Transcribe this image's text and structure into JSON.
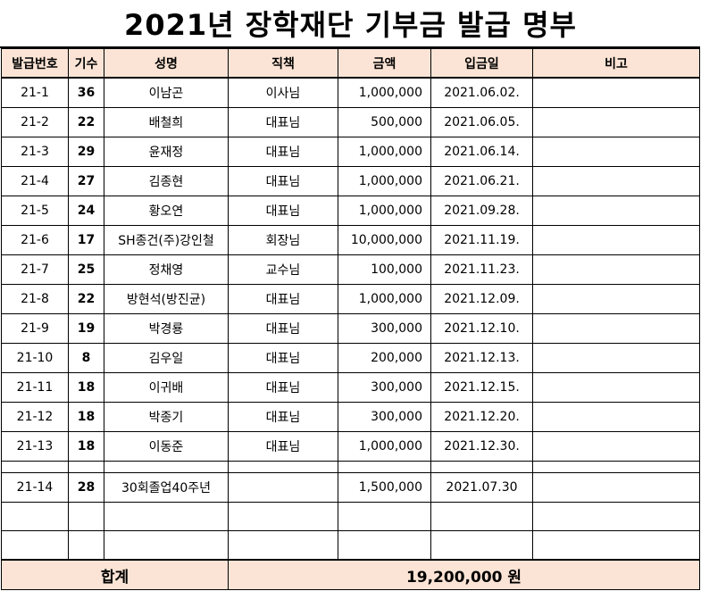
{
  "title": "2021년 장학재단 기부금 발급 명부",
  "headers": [
    "발급번호",
    "기수",
    "성명",
    "직책",
    "금액",
    "입금일",
    "비고"
  ],
  "rows": [
    {
      "no": "21-1",
      "gen": "36",
      "name": "이남곤",
      "role": "이사님",
      "amount": "1,000,000",
      "date": "2021.06.02.",
      "note": ""
    },
    {
      "no": "21-2",
      "gen": "22",
      "name": "배철희",
      "role": "대표님",
      "amount": "500,000",
      "date": "2021.06.05.",
      "note": ""
    },
    {
      "no": "21-3",
      "gen": "29",
      "name": "윤재정",
      "role": "대표님",
      "amount": "1,000,000",
      "date": "2021.06.14.",
      "note": ""
    },
    {
      "no": "21-4",
      "gen": "27",
      "name": "김종현",
      "role": "대표님",
      "amount": "1,000,000",
      "date": "2021.06.21.",
      "note": ""
    },
    {
      "no": "21-5",
      "gen": "24",
      "name": "황오연",
      "role": "대표님",
      "amount": "1,000,000",
      "date": "2021.09.28.",
      "note": ""
    },
    {
      "no": "21-6",
      "gen": "17",
      "name": "SH종건(주)강인철",
      "role": "회장님",
      "amount": "10,000,000",
      "date": "2021.11.19.",
      "note": ""
    },
    {
      "no": "21-7",
      "gen": "25",
      "name": "정채영",
      "role": "교수님",
      "amount": "100,000",
      "date": "2021.11.23.",
      "note": ""
    },
    {
      "no": "21-8",
      "gen": "22",
      "name": "방현석(방진균)",
      "role": "대표님",
      "amount": "1,000,000",
      "date": "2021.12.09.",
      "note": ""
    },
    {
      "no": "21-9",
      "gen": "19",
      "name": "박경룡",
      "role": "대표님",
      "amount": "300,000",
      "date": "2021.12.10.",
      "note": ""
    },
    {
      "no": "21-10",
      "gen": "8",
      "name": "김우일",
      "role": "대표님",
      "amount": "200,000",
      "date": "2021.12.13.",
      "note": ""
    },
    {
      "no": "21-11",
      "gen": "18",
      "name": "이귀배",
      "role": "대표님",
      "amount": "300,000",
      "date": "2021.12.15.",
      "note": ""
    },
    {
      "no": "21-12",
      "gen": "18",
      "name": "박종기",
      "role": "대표님",
      "amount": "300,000",
      "date": "2021.12.20.",
      "note": ""
    },
    {
      "no": "21-13",
      "gen": "18",
      "name": "이동준",
      "role": "대표님",
      "amount": "1,000,000",
      "date": "2021.12.30.",
      "note": ""
    }
  ],
  "extra_row": {
    "no": "21-14",
    "gen": "28",
    "name": "30회졸업40주년",
    "role": "",
    "amount": "1,500,000",
    "date": "2021.07.30",
    "note": ""
  },
  "total": {
    "label": "합계",
    "value": "19,200,000 원"
  },
  "colors": {
    "header_bg": "#fbe4d5",
    "grid": "#000000"
  }
}
